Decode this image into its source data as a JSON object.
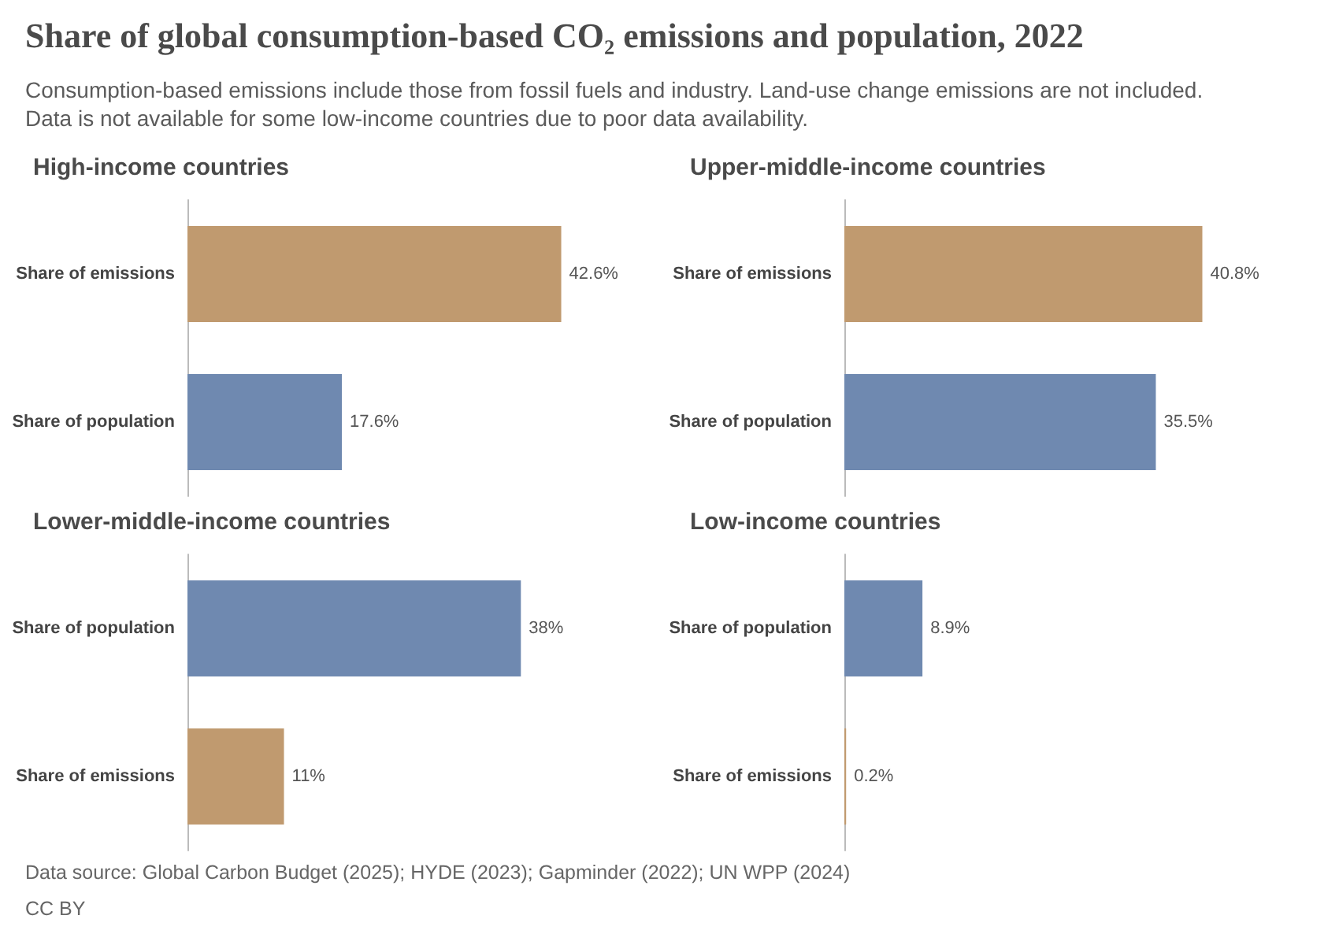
{
  "chart_data": [
    {
      "type": "other",
      "title": "Share of global consumption-based CO₂ emissions and population, 2022",
      "subtitle": "Consumption-based emissions include those from fossil fuels and industry. Land-use change emissions are not included. Data is not available for some low-income countries due to poor data availability.",
      "annotations": [
        "Data source: Global Carbon Budget (2025); HYDE (2023); Gapminder (2022); UN WPP (2024)",
        "CC BY"
      ]
    },
    {
      "type": "bar",
      "orientation": "horizontal",
      "title": "High-income countries",
      "categories": [
        "Share of emissions",
        "Share of population"
      ],
      "values": [
        42.6,
        17.6
      ],
      "colors": [
        "#c09a6f",
        "#6f89b0"
      ],
      "value_labels": [
        "42.6%",
        "17.6%"
      ]
    },
    {
      "type": "bar",
      "orientation": "horizontal",
      "title": "Upper-middle-income countries",
      "categories": [
        "Share of emissions",
        "Share of population"
      ],
      "values": [
        40.8,
        35.5
      ],
      "colors": [
        "#c09a6f",
        "#6f89b0"
      ],
      "value_labels": [
        "40.8%",
        "35.5%"
      ]
    },
    {
      "type": "bar",
      "orientation": "horizontal",
      "title": "Lower-middle-income countries",
      "categories": [
        "Share of population",
        "Share of emissions"
      ],
      "values": [
        38,
        11
      ],
      "colors": [
        "#6f89b0",
        "#c09a6f"
      ],
      "value_labels": [
        "38%",
        "11%"
      ]
    },
    {
      "type": "bar",
      "orientation": "horizontal",
      "title": "Low-income countries",
      "categories": [
        "Share of population",
        "Share of emissions"
      ],
      "values": [
        8.9,
        0.2
      ],
      "colors": [
        "#6f89b0",
        "#c09a6f"
      ],
      "value_labels": [
        "8.9%",
        "0.2%"
      ]
    }
  ]
}
